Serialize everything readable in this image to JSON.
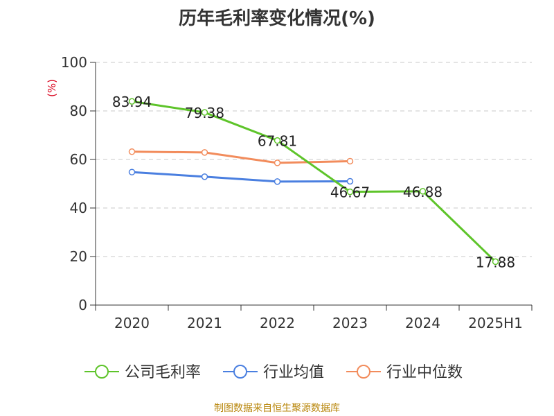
{
  "colors": {
    "company": "#5ec42a",
    "industry_avg": "#4a7fe0",
    "industry_median": "#f28c5c",
    "ylabel": "#d9001b",
    "source": "#b8860b",
    "grid": "#c8c8c8",
    "axis": "#333333"
  },
  "footer": {
    "source": "制图数据来自恒生聚源数据库"
  },
  "chart_data": {
    "type": "line",
    "title": "历年毛利率变化情况(%)",
    "xlabel": "",
    "ylabel": "(%)",
    "categories": [
      "2020",
      "2021",
      "2022",
      "2023",
      "2024",
      "2025H1"
    ],
    "ylim": [
      0,
      100
    ],
    "yticks": [
      0,
      20,
      40,
      60,
      80,
      100
    ],
    "grid": true,
    "legend_position": "bottom",
    "series": [
      {
        "name": "公司毛利率",
        "color_key": "company",
        "values": [
          83.94,
          79.38,
          67.81,
          46.67,
          46.88,
          17.88
        ],
        "labels": [
          "83.94",
          "79.38",
          "67.81",
          "46.67",
          "46.88",
          "17.88"
        ]
      },
      {
        "name": "行业均值",
        "color_key": "industry_avg",
        "values": [
          54.8,
          52.9,
          50.9,
          51.0,
          null,
          null
        ]
      },
      {
        "name": "行业中位数",
        "color_key": "industry_median",
        "values": [
          63.2,
          62.9,
          58.6,
          59.3,
          null,
          null
        ]
      }
    ]
  }
}
